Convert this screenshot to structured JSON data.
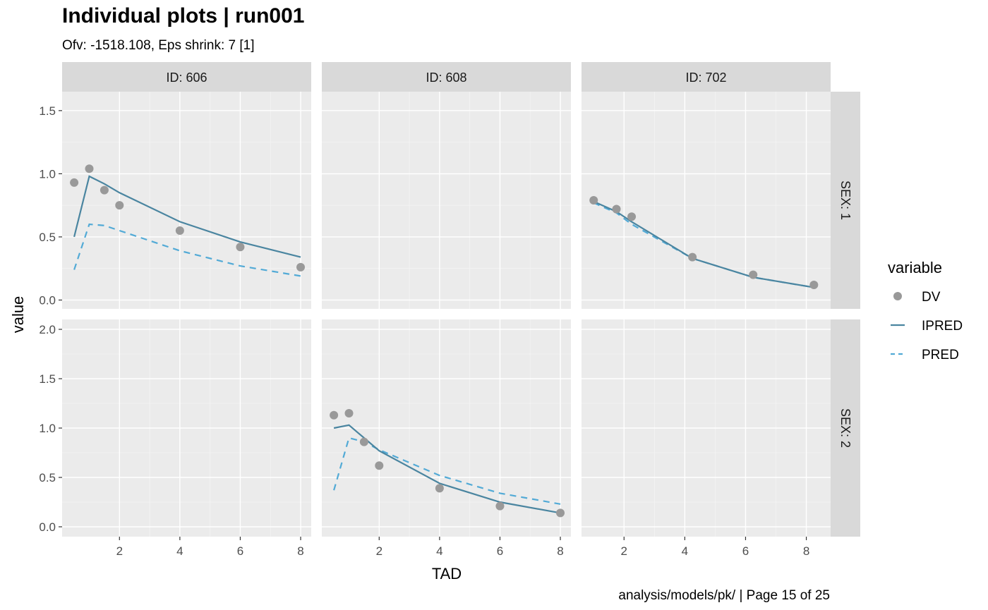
{
  "title": "Individual plots | run001",
  "subtitle": "Ofv: -1518.108, Eps shrink: 7 [1]",
  "caption": "analysis/models/pk/ | Page 15 of 25",
  "chart_data": {
    "type": "line",
    "x_label": "TAD",
    "y_label": "value",
    "x_ticks": [
      2,
      4,
      6,
      8
    ],
    "columns": [
      {
        "label": "ID: 606",
        "xlim": [
          0.1,
          8.35
        ]
      },
      {
        "label": "ID: 608",
        "xlim": [
          0.1,
          8.35
        ]
      },
      {
        "label": "ID: 702",
        "xlim": [
          0.6,
          8.8
        ]
      }
    ],
    "rows": [
      {
        "label": "SEX: 1",
        "ylim": [
          -0.07,
          1.65
        ],
        "y_ticks": [
          0.0,
          0.5,
          1.0,
          1.5
        ],
        "y_tick_labels": [
          "0.0",
          "0.5",
          "1.0",
          "1.5"
        ]
      },
      {
        "label": "SEX: 2",
        "ylim": [
          -0.1,
          2.1
        ],
        "y_ticks": [
          0.0,
          0.5,
          1.0,
          1.5,
          2.0
        ],
        "y_tick_labels": [
          "0.0",
          "0.5",
          "1.0",
          "1.5",
          "2.0"
        ]
      }
    ],
    "legend": {
      "title": "variable",
      "position": "right",
      "entries": [
        {
          "name": "DV",
          "kind": "point",
          "color": "#999999"
        },
        {
          "name": "IPRED",
          "kind": "solid-line",
          "color": "#4a85a0"
        },
        {
          "name": "PRED",
          "kind": "dashed-line",
          "color": "#52aad6"
        }
      ]
    },
    "panels": [
      {
        "row": 0,
        "col": 0,
        "DV": [
          [
            0.5,
            0.93
          ],
          [
            1.0,
            1.04
          ],
          [
            1.5,
            0.87
          ],
          [
            2.0,
            0.75
          ],
          [
            4.0,
            0.55
          ],
          [
            6.0,
            0.42
          ],
          [
            8.0,
            0.26
          ]
        ],
        "IPRED": [
          [
            0.5,
            0.5
          ],
          [
            1.0,
            0.98
          ],
          [
            1.5,
            0.92
          ],
          [
            2.0,
            0.85
          ],
          [
            4.0,
            0.62
          ],
          [
            6.0,
            0.46
          ],
          [
            8.0,
            0.34
          ]
        ],
        "PRED": [
          [
            0.5,
            0.24
          ],
          [
            1.0,
            0.6
          ],
          [
            1.5,
            0.59
          ],
          [
            2.0,
            0.55
          ],
          [
            4.0,
            0.39
          ],
          [
            6.0,
            0.27
          ],
          [
            8.0,
            0.19
          ]
        ]
      },
      {
        "row": 0,
        "col": 1,
        "DV": [],
        "IPRED": [],
        "PRED": []
      },
      {
        "row": 0,
        "col": 2,
        "DV": [
          [
            1.0,
            0.79
          ],
          [
            1.75,
            0.72
          ],
          [
            2.25,
            0.66
          ],
          [
            4.25,
            0.34
          ],
          [
            6.25,
            0.2
          ],
          [
            8.25,
            0.12
          ]
        ],
        "IPRED": [
          [
            1.0,
            0.78
          ],
          [
            1.75,
            0.7
          ],
          [
            2.25,
            0.62
          ],
          [
            4.25,
            0.33
          ],
          [
            6.25,
            0.18
          ],
          [
            8.25,
            0.1
          ]
        ],
        "PRED": [
          [
            1.0,
            0.77
          ],
          [
            1.75,
            0.69
          ],
          [
            2.25,
            0.6
          ],
          [
            4.25,
            0.33
          ],
          [
            6.25,
            0.18
          ],
          [
            8.25,
            0.1
          ]
        ]
      },
      {
        "row": 1,
        "col": 0,
        "DV": [],
        "IPRED": [],
        "PRED": []
      },
      {
        "row": 1,
        "col": 1,
        "DV": [
          [
            0.5,
            1.13
          ],
          [
            1.0,
            1.15
          ],
          [
            1.5,
            0.86
          ],
          [
            2.0,
            0.62
          ],
          [
            4.0,
            0.39
          ],
          [
            6.0,
            0.21
          ],
          [
            8.0,
            0.14
          ]
        ],
        "IPRED": [
          [
            0.5,
            1.0
          ],
          [
            1.0,
            1.03
          ],
          [
            1.5,
            0.9
          ],
          [
            2.0,
            0.77
          ],
          [
            4.0,
            0.44
          ],
          [
            6.0,
            0.25
          ],
          [
            8.0,
            0.14
          ]
        ],
        "PRED": [
          [
            0.5,
            0.37
          ],
          [
            1.0,
            0.9
          ],
          [
            1.5,
            0.86
          ],
          [
            2.0,
            0.78
          ],
          [
            4.0,
            0.52
          ],
          [
            6.0,
            0.34
          ],
          [
            8.0,
            0.23
          ]
        ]
      },
      {
        "row": 1,
        "col": 2,
        "DV": [],
        "IPRED": [],
        "PRED": []
      }
    ]
  }
}
